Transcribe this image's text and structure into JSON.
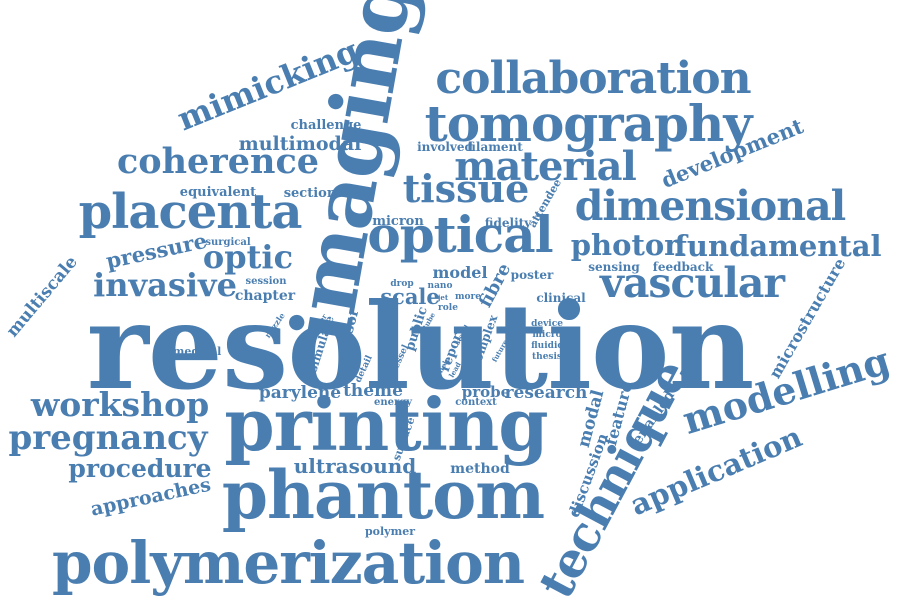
{
  "color": "#4a7eb0",
  "words": [
    {
      "id": "resolution",
      "text": "resolution"
    },
    {
      "id": "printing",
      "text": "printing"
    },
    {
      "id": "phantom",
      "text": "phantom"
    },
    {
      "id": "imaging",
      "text": "imaging"
    },
    {
      "id": "polymerization",
      "text": "polymerization"
    },
    {
      "id": "collaboration",
      "text": "collaboration"
    },
    {
      "id": "tomography",
      "text": "tomography"
    },
    {
      "id": "material",
      "text": "material"
    },
    {
      "id": "coherence",
      "text": "coherence"
    },
    {
      "id": "placenta",
      "text": "placenta"
    },
    {
      "id": "optical",
      "text": "optical"
    },
    {
      "id": "tissue",
      "text": "tissue"
    },
    {
      "id": "dimensional",
      "text": "dimensional"
    },
    {
      "id": "photon",
      "text": "photon"
    },
    {
      "id": "fundamental",
      "text": "fundamental"
    },
    {
      "id": "vascular",
      "text": "vascular"
    },
    {
      "id": "technique",
      "text": "technique"
    },
    {
      "id": "modelling",
      "text": "modelling"
    },
    {
      "id": "workshop",
      "text": "workshop"
    },
    {
      "id": "pregnancy",
      "text": "pregnancy"
    },
    {
      "id": "procedure",
      "text": "procedure"
    },
    {
      "id": "invasive",
      "text": "invasive"
    },
    {
      "id": "optic",
      "text": "optic"
    },
    {
      "id": "mimicking",
      "text": "mimicking"
    },
    {
      "id": "application",
      "text": "application"
    },
    {
      "id": "development",
      "text": "development"
    },
    {
      "id": "pressure",
      "text": "pressure"
    },
    {
      "id": "approaches",
      "text": "approaches"
    },
    {
      "id": "ultrasound",
      "text": "ultrasound"
    },
    {
      "id": "multimodal",
      "text": "multimodal"
    },
    {
      "id": "multiscale",
      "text": "multiscale"
    },
    {
      "id": "microstructure",
      "text": "microstructure"
    },
    {
      "id": "scale",
      "text": "scale"
    },
    {
      "id": "model",
      "text": "model"
    },
    {
      "id": "fibre",
      "text": "fibre"
    },
    {
      "id": "theme",
      "text": "theme"
    },
    {
      "id": "parylene",
      "text": "parylene"
    },
    {
      "id": "probe",
      "text": "probe"
    },
    {
      "id": "research",
      "text": "research"
    },
    {
      "id": "method",
      "text": "method"
    },
    {
      "id": "modal",
      "text": "modal"
    },
    {
      "id": "feature",
      "text": "feature"
    },
    {
      "id": "enabled",
      "text": "enabled"
    },
    {
      "id": "discussion",
      "text": "discussion"
    },
    {
      "id": "chapter",
      "text": "chapter"
    },
    {
      "id": "equivalent",
      "text": "equivalent"
    },
    {
      "id": "section",
      "text": "section"
    },
    {
      "id": "challenge",
      "text": "challenge"
    },
    {
      "id": "involved",
      "text": "involved"
    },
    {
      "id": "filament",
      "text": "filament"
    },
    {
      "id": "micron",
      "text": "micron"
    },
    {
      "id": "fidelity",
      "text": "fidelity"
    },
    {
      "id": "attendee",
      "text": "attendee"
    },
    {
      "id": "surgical",
      "text": "surgical"
    },
    {
      "id": "session",
      "text": "session"
    },
    {
      "id": "sensing",
      "text": "sensing"
    },
    {
      "id": "feedback",
      "text": "feedback"
    },
    {
      "id": "poster",
      "text": "poster"
    },
    {
      "id": "drop",
      "text": "drop"
    },
    {
      "id": "nano",
      "text": "nano"
    },
    {
      "id": "jet",
      "text": "jet"
    },
    {
      "id": "role",
      "text": "role"
    },
    {
      "id": "more",
      "text": "more"
    },
    {
      "id": "clinical",
      "text": "clinical"
    },
    {
      "id": "device",
      "text": "device"
    },
    {
      "id": "micro",
      "text": "micro"
    },
    {
      "id": "fluidic",
      "text": "fluidic"
    },
    {
      "id": "thesis",
      "text": "thesis"
    },
    {
      "id": "sensor",
      "text": "sensor"
    },
    {
      "id": "simulate",
      "text": "simulate"
    },
    {
      "id": "public",
      "text": "public"
    },
    {
      "id": "report",
      "text": "report"
    },
    {
      "id": "complex",
      "text": "complex"
    },
    {
      "id": "vessel",
      "text": "vessel"
    },
    {
      "id": "detail",
      "text": "detail"
    },
    {
      "id": "energy",
      "text": "energy"
    },
    {
      "id": "context",
      "text": "context"
    },
    {
      "id": "surface",
      "text": "surface"
    },
    {
      "id": "polymer",
      "text": "polymer"
    },
    {
      "id": "medical",
      "text": "medical"
    },
    {
      "id": "nozzle",
      "text": "nozzle"
    },
    {
      "id": "order",
      "text": "order"
    },
    {
      "id": "area",
      "text": "area"
    },
    {
      "id": "tube",
      "text": "tube"
    },
    {
      "id": "stand",
      "text": "stand"
    },
    {
      "id": "future",
      "text": "future"
    },
    {
      "id": "help",
      "text": "help"
    },
    {
      "id": "lead",
      "text": "lead"
    }
  ]
}
